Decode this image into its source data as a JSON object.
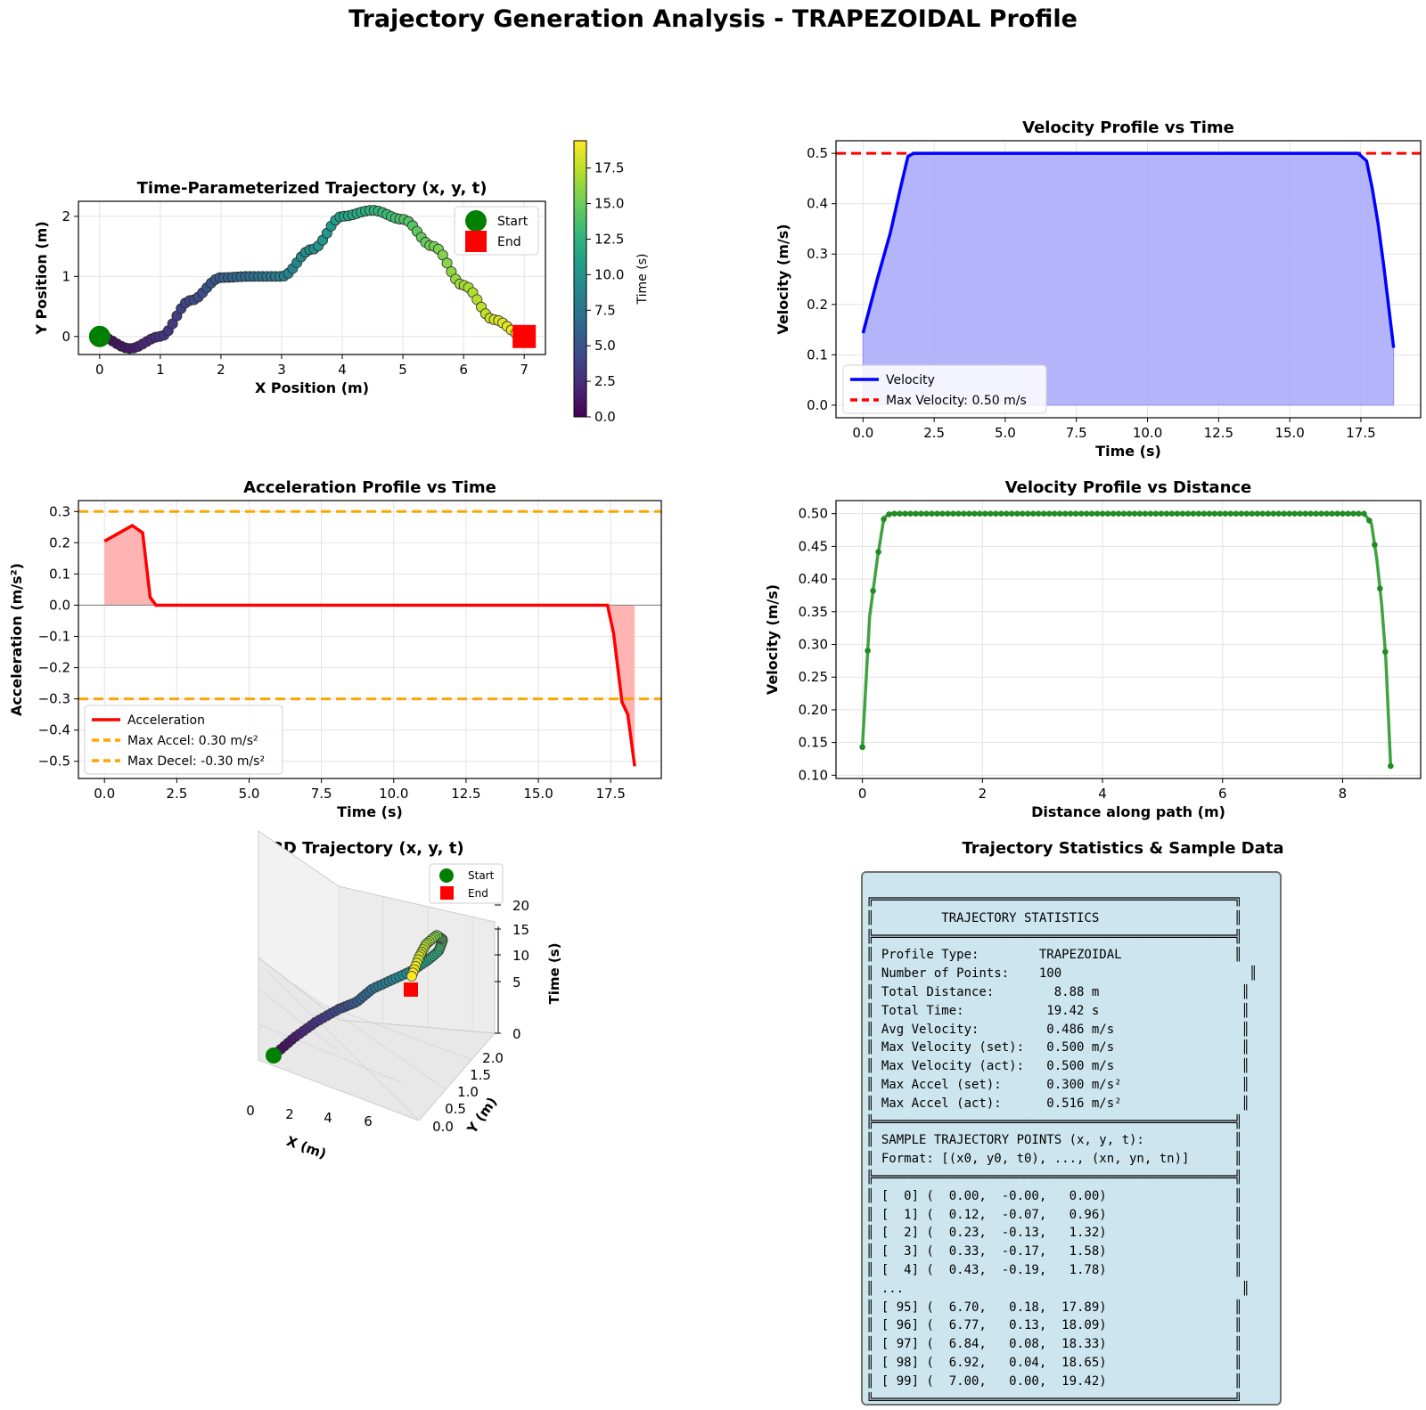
{
  "figure": {
    "suptitle": "Trajectory Generation Analysis - TRAPEZOIDAL Profile"
  },
  "chart_data": [
    {
      "id": "xy",
      "type": "scatter",
      "title": "Time-Parameterized Trajectory (x, y, t)",
      "xlabel": "X Position (m)",
      "ylabel": "Y Position (m)",
      "xlim": [
        -0.35,
        7.35
      ],
      "ylim": [
        -0.3,
        2.25
      ],
      "xticks": [
        "0",
        "1",
        "2",
        "3",
        "4",
        "5",
        "6",
        "7"
      ],
      "yticks": [
        "0",
        "1",
        "2"
      ],
      "grid": true,
      "legend": {
        "position": "top-right",
        "entries": [
          "Start",
          "End"
        ]
      },
      "colorbar": {
        "label": "Time (s)",
        "range": [
          0,
          19.42
        ],
        "ticks": [
          "0.0",
          "2.5",
          "5.0",
          "7.5",
          "10.0",
          "12.5",
          "15.0",
          "17.5"
        ]
      },
      "path": {
        "x": [
          0,
          0.5,
          1.0,
          1.5,
          2.0,
          2.5,
          3.0,
          3.5,
          4.0,
          4.5,
          5.0,
          5.5,
          6.0,
          6.5,
          7.0
        ],
        "y": [
          0,
          -0.2,
          0.0,
          0.6,
          0.98,
          1.0,
          1.0,
          1.45,
          2.0,
          2.1,
          1.95,
          1.5,
          0.85,
          0.28,
          0.0
        ]
      },
      "start": {
        "x": 0,
        "y": 0
      },
      "end": {
        "x": 7,
        "y": 0
      },
      "colors": {
        "start": "#008000",
        "end": "#ff0000"
      }
    },
    {
      "id": "vel_time",
      "type": "area",
      "title": "Velocity Profile vs Time",
      "xlabel": "Time (s)",
      "ylabel": "Velocity (m/s)",
      "xlim": [
        -0.95,
        19.6
      ],
      "ylim": [
        -0.025,
        0.525
      ],
      "xticks": [
        "0.0",
        "2.5",
        "5.0",
        "7.5",
        "10.0",
        "12.5",
        "15.0",
        "17.5"
      ],
      "yticks": [
        "0.0",
        "0.1",
        "0.2",
        "0.3",
        "0.4",
        "0.5"
      ],
      "grid": true,
      "legend": {
        "position": "bottom-left",
        "entries": [
          "Velocity",
          "Max Velocity: 0.50 m/s"
        ]
      },
      "series": [
        {
          "name": "Velocity",
          "x": [
            0.0,
            0.5,
            0.96,
            1.32,
            1.58,
            1.78,
            2.0,
            17.4,
            17.7,
            17.9,
            18.1,
            18.3,
            18.65
          ],
          "y": [
            0.143,
            0.25,
            0.342,
            0.432,
            0.494,
            0.5,
            0.5,
            0.5,
            0.485,
            0.43,
            0.362,
            0.278,
            0.114
          ]
        }
      ],
      "hline": {
        "name": "Max Velocity: 0.50 m/s",
        "y": 0.5
      },
      "colors": {
        "line": "#0000ff",
        "fill": "#b0b0fa",
        "limit": "#ff0000"
      }
    },
    {
      "id": "accel_time",
      "type": "line",
      "title": "Acceleration Profile vs Time",
      "xlabel": "Time (s)",
      "ylabel": "Acceleration (m/s²)",
      "xlim": [
        -0.9,
        19.25
      ],
      "ylim": [
        -0.555,
        0.335
      ],
      "xticks": [
        "0.0",
        "2.5",
        "5.0",
        "7.5",
        "10.0",
        "12.5",
        "15.0",
        "17.5"
      ],
      "yticks": [
        "0.3",
        "0.2",
        "0.1",
        "0.0",
        "−0.1",
        "−0.2",
        "−0.3",
        "−0.4",
        "−0.5"
      ],
      "grid": true,
      "legend": {
        "position": "bottom-left",
        "entries": [
          "Acceleration",
          "Max Accel: 0.30 m/s²",
          "Max Decel: -0.30 m/s²"
        ]
      },
      "series": [
        {
          "name": "Acceleration",
          "x": [
            0.0,
            0.96,
            1.32,
            1.58,
            1.78,
            2.5,
            17.39,
            17.6,
            17.89,
            18.09,
            18.33
          ],
          "y": [
            0.205,
            0.255,
            0.232,
            0.025,
            0.0,
            0.0,
            0.0,
            -0.09,
            -0.31,
            -0.35,
            -0.516
          ]
        }
      ],
      "hlines": [
        {
          "name": "Max Accel: 0.30 m/s²",
          "y": 0.3
        },
        {
          "name": "Max Decel: -0.30 m/s²",
          "y": -0.3
        }
      ],
      "colors": {
        "line": "#ff0000",
        "fill": "#ffb3b3",
        "limit": "#ffa500"
      }
    },
    {
      "id": "vel_dist",
      "type": "line",
      "title": "Velocity Profile vs Distance",
      "xlabel": "Distance along path (m)",
      "ylabel": "Velocity (m/s)",
      "xlim": [
        -0.44,
        9.3
      ],
      "ylim": [
        0.095,
        0.52
      ],
      "xticks": [
        "0",
        "2",
        "4",
        "6",
        "8"
      ],
      "yticks": [
        "0.10",
        "0.15",
        "0.20",
        "0.25",
        "0.30",
        "0.35",
        "0.40",
        "0.45",
        "0.50"
      ],
      "grid": true,
      "series": [
        {
          "name": "",
          "x": [
            0.0,
            0.12,
            0.25,
            0.36,
            0.46,
            8.36,
            8.48,
            8.57,
            8.65,
            8.72,
            8.8
          ],
          "y": [
            0.143,
            0.342,
            0.432,
            0.494,
            0.5,
            0.5,
            0.485,
            0.43,
            0.362,
            0.278,
            0.114
          ]
        }
      ],
      "colors": {
        "line": "#2a992a",
        "marker": "#228b22"
      }
    },
    {
      "id": "traj3d",
      "type": "line",
      "title": "3D Trajectory (x, y, t)",
      "xlabel": "X (m)",
      "ylabel": "Y (m)",
      "zlabel": "Time (s)",
      "xticks": [
        "0",
        "2",
        "4",
        "6"
      ],
      "yticks": [
        "0.0",
        "0.5",
        "1.0",
        "1.5",
        "2.0"
      ],
      "zticks": [
        "0",
        "5",
        "10",
        "15",
        "20"
      ],
      "legend": {
        "position": "top-right",
        "entries": [
          "Start",
          "End"
        ]
      },
      "colors": {
        "start": "#008000",
        "end": "#ff0000"
      }
    }
  ],
  "stats_panel": {
    "title": "Trajectory Statistics & Sample Data",
    "lines": [
      "╔════════════════════════════════════════════════╗",
      "║         TRAJECTORY STATISTICS                  ║",
      "╠════════════════════════════════════════════════╣",
      "║ Profile Type:        TRAPEZOIDAL               ║",
      "║ Number of Points:    100                         ║",
      "║ Total Distance:        8.88 m                   ║",
      "║ Total Time:           19.42 s                   ║",
      "║ Avg Velocity:         0.486 m/s                 ║",
      "║ Max Velocity (set):   0.500 m/s                 ║",
      "║ Max Velocity (act):   0.500 m/s                 ║",
      "║ Max Accel (set):      0.300 m/s²                ║",
      "║ Max Accel (act):      0.516 m/s²                ║",
      "╠════════════════════════════════════════════════╣",
      "║ SAMPLE TRAJECTORY POINTS (x, y, t):            ║",
      "║ Format: [(x0, y0, t0), ..., (xn, yn, tn)]      ║",
      "╠════════════════════════════════════════════════╣",
      "║ [  0] (  0.00,  -0.00,   0.00)                 ║",
      "║ [  1] (  0.12,  -0.07,   0.96)                 ║",
      "║ [  2] (  0.23,  -0.13,   1.32)                 ║",
      "║ [  3] (  0.33,  -0.17,   1.58)                 ║",
      "║ [  4] (  0.43,  -0.19,   1.78)                 ║",
      "║ ...                                             ║",
      "║ [ 95] (  6.70,   0.18,  17.89)                 ║",
      "║ [ 96] (  6.77,   0.13,  18.09)                 ║",
      "║ [ 97] (  6.84,   0.08,  18.33)                 ║",
      "║ [ 98] (  6.92,   0.04,  18.65)                 ║",
      "║ [ 99] (  7.00,   0.00,  19.42)                 ║",
      "╚════════════════════════════════════════════════╝"
    ]
  }
}
